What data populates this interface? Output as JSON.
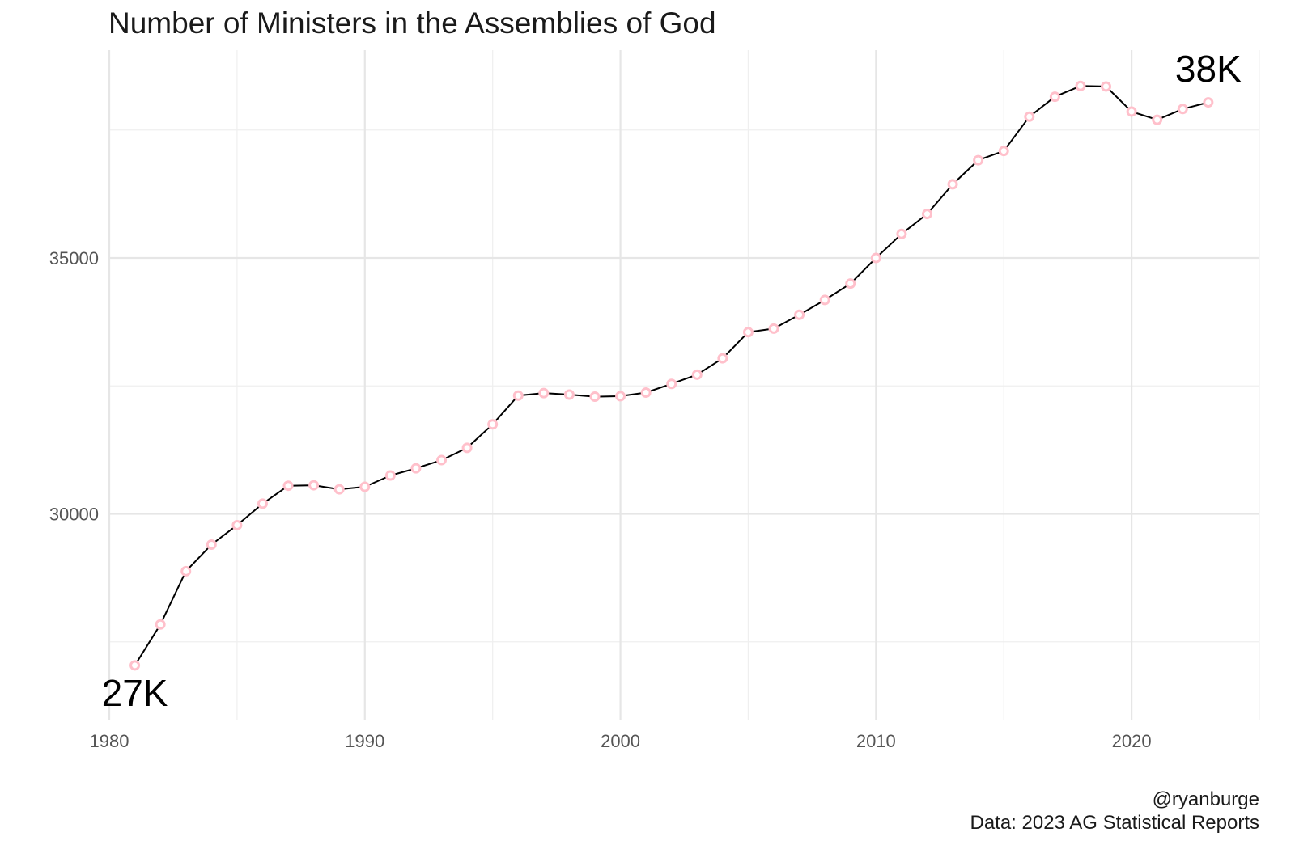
{
  "chart_data": {
    "type": "line",
    "title": "Number of Ministers in the Assemblies of God",
    "xlabel": "",
    "ylabel": "",
    "x": [
      1981,
      1982,
      1983,
      1984,
      1985,
      1986,
      1987,
      1988,
      1989,
      1990,
      1991,
      1992,
      1993,
      1994,
      1995,
      1996,
      1997,
      1998,
      1999,
      2000,
      2001,
      2002,
      2003,
      2004,
      2005,
      2006,
      2007,
      2008,
      2009,
      2010,
      2011,
      2012,
      2013,
      2014,
      2015,
      2016,
      2017,
      2018,
      2019,
      2020,
      2021,
      2022,
      2023
    ],
    "series": [
      {
        "name": "Ministers",
        "values": [
          27040,
          27840,
          28880,
          29400,
          29780,
          30200,
          30550,
          30560,
          30480,
          30530,
          30750,
          30890,
          31050,
          31290,
          31750,
          32310,
          32360,
          32330,
          32290,
          32300,
          32370,
          32540,
          32720,
          33040,
          33550,
          33620,
          33890,
          34180,
          34500,
          35000,
          35470,
          35860,
          36440,
          36910,
          37090,
          37760,
          38150,
          38360,
          38350,
          37860,
          37700,
          37910,
          38040
        ]
      }
    ],
    "xlim": [
      1980,
      2025
    ],
    "ylim": [
      25980,
      39060
    ],
    "x_ticks": [
      1980,
      1990,
      2000,
      2010,
      2020
    ],
    "x_minor_ticks": [
      1985,
      1995,
      2005,
      2015,
      2025
    ],
    "y_ticks": [
      30000,
      35000
    ],
    "y_minor_ticks": [
      27500,
      32500,
      37500
    ],
    "grid": true,
    "line_color": "#000000",
    "marker_color": "#ffc0cb",
    "annotations": [
      {
        "text": "27K",
        "x": 1981,
        "y": 26500
      },
      {
        "text": "38K",
        "x": 2023,
        "y": 38700
      }
    ]
  },
  "caption": {
    "credit": "@ryanburge",
    "source": "Data: 2023 AG Statistical Reports"
  }
}
